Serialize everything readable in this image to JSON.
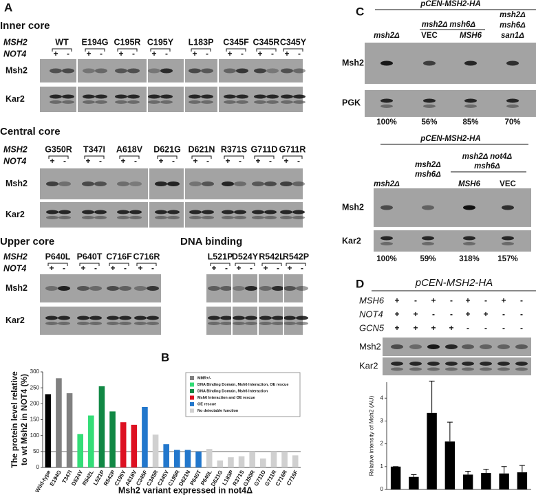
{
  "panel_labels": [
    "A",
    "B",
    "C",
    "D"
  ],
  "panel_a": {
    "row_msh2": "MSH2",
    "row_not4": "NOT4",
    "blot_msh2": "Msh2",
    "blot_kar2": "Kar2",
    "plus": "+",
    "minus": "-",
    "sections": [
      {
        "title": "Inner core",
        "variants": [
          "WT",
          "E194G",
          "C195R",
          "C195Y",
          "L183P",
          "C345F",
          "C345R",
          "C345Y"
        ]
      },
      {
        "title": "Central core",
        "variants": [
          "G350R",
          "T347I",
          "A618V",
          "D621G",
          "D621N",
          "R371S",
          "G711D",
          "G711R"
        ]
      },
      {
        "title": "Upper core",
        "variants": [
          "P640L",
          "P640T",
          "C716F",
          "C716R"
        ]
      },
      {
        "title": "DNA binding",
        "variants": [
          "L521P",
          "D524Y",
          "R542L",
          "R542P"
        ]
      }
    ]
  },
  "panel_c": {
    "top": {
      "construct": "pCEN-MSH2-HA",
      "col1": "msh2Δ",
      "group": "msh2Δ msh6Δ",
      "vec": "VEC",
      "msh6": "MSH6",
      "col4": [
        "msh2Δ",
        "msh6Δ",
        "san1Δ"
      ],
      "blot1": "Msh2",
      "blot2": "PGK",
      "percents": [
        "100%",
        "56%",
        "85%",
        "70%"
      ]
    },
    "bottom": {
      "construct": "pCEN-MSH2-HA",
      "col1": "msh2Δ",
      "col2": [
        "msh2Δ",
        "msh6Δ"
      ],
      "group": [
        "msh2Δ not4Δ",
        "msh6Δ"
      ],
      "msh6": "MSH6",
      "vec": "VEC",
      "blot1": "Msh2",
      "blot2": "Kar2",
      "percents": [
        "100%",
        "59%",
        "318%",
        "157%"
      ]
    }
  },
  "panel_d": {
    "construct": "pCEN-MSH2-HA",
    "rows": [
      {
        "name": "MSH6",
        "signs": [
          "+",
          "-",
          "+",
          "-",
          "+",
          "-",
          "+",
          "-"
        ]
      },
      {
        "name": "NOT4",
        "signs": [
          "+",
          "+",
          "-",
          "-",
          "+",
          "+",
          "-",
          "-"
        ]
      },
      {
        "name": "GCN5",
        "signs": [
          "+",
          "+",
          "+",
          "+",
          "-",
          "-",
          "-",
          "-"
        ]
      }
    ],
    "blot1": "Msh2",
    "blot2": "Kar2"
  },
  "chart_data": [
    {
      "type": "bar",
      "ylabel": [
        "The protein level relative",
        "to wt Msh2 in NOT4 (%)"
      ],
      "xlabel": "Msh2 variant expressed in not4Δ",
      "categories": [
        "Wild-type",
        "E194G",
        "T347I",
        "D524Y",
        "R542L",
        "L521P",
        "R542P",
        "C195Y",
        "A618V",
        "C345F",
        "C345R",
        "C345Y",
        "C195R",
        "D621N",
        "P640T",
        "P640L",
        "D621G",
        "L183P",
        "R371S",
        "G350R",
        "G711D",
        "G711R",
        "C716R",
        "C716F"
      ],
      "values": [
        230,
        280,
        233,
        105,
        163,
        255,
        176,
        142,
        134,
        190,
        103,
        73,
        55,
        55,
        50,
        58,
        22,
        32,
        35,
        50,
        28,
        50,
        50,
        38
      ],
      "colors": [
        "#000000",
        "#808080",
        "#808080",
        "#33dd77",
        "#33dd77",
        "#118844",
        "#118844",
        "#dd1122",
        "#dd1122",
        "#2277cc",
        "#d0d0d0",
        "#2277cc",
        "#2277cc",
        "#2277cc",
        "#2277cc",
        "#d0d0d0",
        "#d0d0d0",
        "#d0d0d0",
        "#d0d0d0",
        "#d0d0d0",
        "#d0d0d0",
        "#d0d0d0",
        "#d0d0d0",
        "#d0d0d0"
      ],
      "legend": [
        {
          "name": "MMR+/-",
          "color": "#808080"
        },
        {
          "name": "DNA Binding Domain, Msh6 Interaction, OE rescue",
          "color": "#33dd77"
        },
        {
          "name": "DNA Binding Domain, Msh6 Interaction",
          "color": "#118844"
        },
        {
          "name": "Msh6 Interaction and OE rescue",
          "color": "#dd1122"
        },
        {
          "name": "OE rescue",
          "color": "#2277cc"
        },
        {
          "name": "No detectable function",
          "color": "#d0d0d0"
        }
      ],
      "ylim": [
        0,
        300
      ],
      "yticks": [
        0,
        50,
        100,
        150,
        200,
        250,
        300
      ],
      "hline": 50
    },
    {
      "type": "bar",
      "ylabel": "Relative intensity of Msh2 (AU)",
      "categories": [
        null,
        null,
        null,
        null,
        null,
        null,
        null,
        null
      ],
      "values": [
        1,
        0.55,
        3.35,
        2.1,
        0.65,
        0.72,
        0.7,
        0.75
      ],
      "errors": [
        0,
        0.1,
        1.4,
        0.85,
        0.15,
        0.17,
        0.3,
        0.3
      ],
      "color": "#000000",
      "ylim": [
        0,
        4.7
      ],
      "yticks": [
        0,
        1,
        2,
        3,
        4
      ]
    }
  ]
}
